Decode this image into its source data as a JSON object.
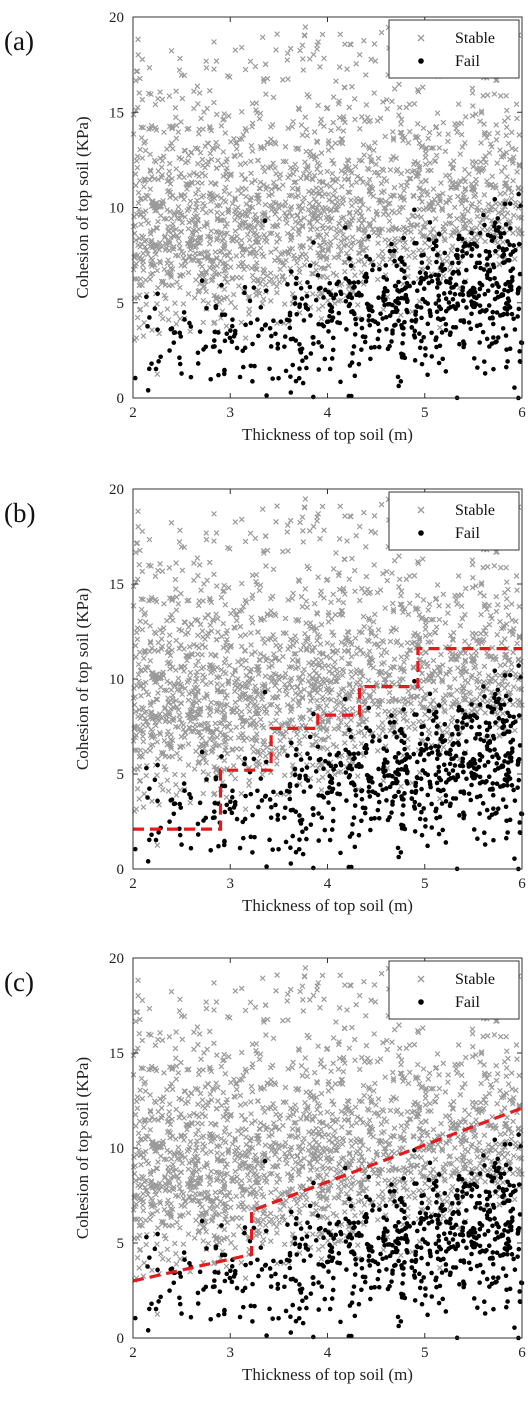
{
  "colors": {
    "stable": "#9a9a9a",
    "fail": "#000000",
    "boundary": "#e41a1c",
    "axes": "#333333"
  },
  "chart_data": [
    {
      "type": "scatter",
      "panel_label": "(a)",
      "xlabel": "Thickness of top soil (m)",
      "ylabel": "Cohesion of top soil (KPa)",
      "xlim": [
        2,
        6
      ],
      "ylim": [
        0,
        20
      ],
      "xticks": [
        2,
        3,
        4,
        5,
        6
      ],
      "yticks": [
        0,
        5,
        10,
        15,
        20
      ],
      "grid": false,
      "legend": {
        "placement": "top-right",
        "entries": [
          "Stable",
          "Fail"
        ]
      },
      "series": [
        {
          "name": "Stable",
          "marker": "x",
          "color": "#9a9a9a"
        },
        {
          "name": "Fail",
          "marker": "dot",
          "color": "#000000"
        }
      ],
      "boundary": null
    },
    {
      "type": "scatter",
      "panel_label": "(b)",
      "xlabel": "Thickness of top soil (m)",
      "ylabel": "Cohesion of top soil (KPa)",
      "xlim": [
        2,
        6
      ],
      "ylim": [
        0,
        20
      ],
      "xticks": [
        2,
        3,
        4,
        5,
        6
      ],
      "yticks": [
        0,
        5,
        10,
        15,
        20
      ],
      "grid": false,
      "legend": {
        "placement": "top-right",
        "entries": [
          "Stable",
          "Fail"
        ]
      },
      "series": [
        {
          "name": "Stable",
          "marker": "x",
          "color": "#9a9a9a"
        },
        {
          "name": "Fail",
          "marker": "dot",
          "color": "#000000"
        }
      ],
      "boundary": {
        "style": "dashed",
        "color": "#e41a1c",
        "x": [
          2.0,
          2.9,
          2.9,
          3.42,
          3.42,
          3.9,
          3.9,
          4.33,
          4.33,
          4.93,
          4.93,
          6.0
        ],
        "y": [
          2.1,
          2.1,
          5.2,
          5.2,
          7.4,
          7.4,
          8.1,
          8.1,
          9.6,
          9.6,
          11.6,
          11.6
        ]
      }
    },
    {
      "type": "scatter",
      "panel_label": "(c)",
      "xlabel": "Thickness of top soil (m)",
      "ylabel": "Cohesion of top soil (KPa)",
      "xlim": [
        2,
        6
      ],
      "ylim": [
        0,
        20
      ],
      "xticks": [
        2,
        3,
        4,
        5,
        6
      ],
      "yticks": [
        0,
        5,
        10,
        15,
        20
      ],
      "grid": false,
      "legend": {
        "placement": "top-right",
        "entries": [
          "Stable",
          "Fail"
        ]
      },
      "series": [
        {
          "name": "Stable",
          "marker": "x",
          "color": "#9a9a9a"
        },
        {
          "name": "Fail",
          "marker": "dot",
          "color": "#000000"
        }
      ],
      "boundary": {
        "style": "dashed",
        "color": "#e41a1c",
        "x": [
          2.0,
          3.22,
          3.22,
          6.0
        ],
        "y": [
          3.0,
          4.4,
          6.7,
          12.1
        ]
      }
    }
  ]
}
